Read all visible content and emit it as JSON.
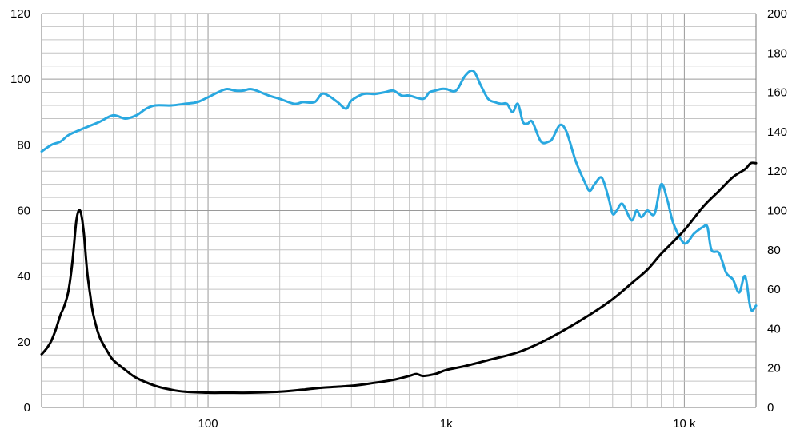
{
  "chart_data": {
    "type": "line",
    "title": "",
    "xlabel": "",
    "ylabel": "",
    "y2label": "",
    "x_scale": "log",
    "xlim": [
      20,
      20000
    ],
    "ylim": [
      0,
      120
    ],
    "y2lim": [
      0,
      200
    ],
    "grid": true,
    "legend": "none",
    "x_ticks": [
      {
        "value": 100,
        "label": "100"
      },
      {
        "value": 1000,
        "label": "1k"
      },
      {
        "value": 10000,
        "label": "10 k"
      }
    ],
    "y_ticks": [
      0,
      20,
      40,
      60,
      80,
      100,
      120
    ],
    "y2_ticks": [
      0,
      20,
      40,
      60,
      80,
      100,
      120,
      140,
      160,
      180,
      200
    ],
    "series": [
      {
        "axis": "left",
        "color": "#29a8e0",
        "x": [
          20,
          22,
          24,
          26,
          30,
          35,
          40,
          45,
          50,
          55,
          60,
          70,
          80,
          90,
          100,
          110,
          120,
          130,
          140,
          150,
          160,
          180,
          200,
          230,
          250,
          280,
          300,
          320,
          350,
          380,
          400,
          450,
          500,
          550,
          600,
          650,
          700,
          800,
          850,
          900,
          950,
          1000,
          1100,
          1200,
          1300,
          1400,
          1500,
          1600,
          1700,
          1800,
          1900,
          2000,
          2100,
          2200,
          2300,
          2500,
          2700,
          2800,
          3000,
          3200,
          3500,
          3800,
          4000,
          4200,
          4500,
          4800,
          5000,
          5200,
          5500,
          6000,
          6300,
          6600,
          7000,
          7500,
          8000,
          8500,
          9000,
          10000,
          11000,
          12000,
          12500,
          13000,
          14000,
          15000,
          16000,
          17000,
          18000,
          19000,
          20000
        ],
        "values": [
          78,
          80,
          81,
          83,
          85,
          87,
          89,
          88,
          89,
          91,
          92,
          92,
          92.5,
          93,
          94.5,
          96,
          97,
          96.5,
          96.5,
          97,
          96.5,
          95,
          94,
          92.5,
          93,
          93,
          95.5,
          95,
          93,
          91,
          93.5,
          95.5,
          95.5,
          96,
          96.5,
          95,
          95,
          94,
          96,
          96.5,
          97,
          97,
          96.5,
          101,
          102.5,
          98,
          94,
          93,
          92.5,
          92.5,
          90,
          92.5,
          87,
          86.5,
          87,
          81,
          81,
          82,
          86,
          84,
          75,
          69,
          66,
          68,
          70,
          64,
          59,
          60,
          62,
          57,
          60,
          58,
          60,
          59,
          68,
          63,
          56,
          50,
          53,
          55,
          55,
          48,
          47,
          41,
          39,
          35,
          40,
          30,
          31
        ]
      },
      {
        "axis": "right",
        "color": "#000000",
        "x": [
          20,
          21,
          22,
          23,
          24,
          25,
          26,
          27,
          28,
          29,
          30,
          31,
          32,
          33,
          35,
          38,
          40,
          45,
          50,
          60,
          70,
          80,
          100,
          120,
          150,
          200,
          250,
          300,
          400,
          500,
          600,
          700,
          750,
          800,
          900,
          1000,
          1200,
          1500,
          2000,
          2500,
          3000,
          4000,
          5000,
          6000,
          7000,
          8000,
          10000,
          12000,
          14000,
          16000,
          18000,
          19000,
          20000
        ],
        "values": [
          27,
          30,
          34,
          40,
          47,
          52,
          60,
          75,
          95,
          100,
          90,
          70,
          57,
          47,
          36,
          28,
          24,
          19,
          15,
          11,
          9,
          8,
          7.5,
          7.5,
          7.5,
          8,
          9,
          10,
          11,
          12.5,
          14,
          16,
          17,
          16,
          17,
          19,
          21,
          24,
          28,
          33,
          38,
          47,
          55,
          63,
          70,
          78,
          90,
          102,
          110,
          117,
          121,
          124,
          124
        ]
      }
    ]
  }
}
